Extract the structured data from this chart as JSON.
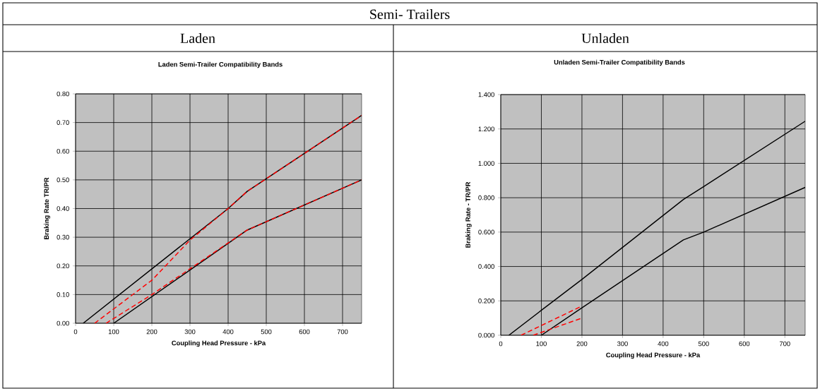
{
  "chart_data": [
    {
      "type": "line",
      "title": "Laden Semi-Trailer Compatibility Bands",
      "subtitle": "Laden",
      "annotations": [
        "Semi- Trailers"
      ],
      "xlabel": "Coupling Head Pressure - kPa",
      "ylabel": "Braking Rate TR/PR",
      "xlim": [
        0,
        750
      ],
      "xticks": [
        0,
        100,
        200,
        300,
        400,
        500,
        600,
        700
      ],
      "ylim": [
        0,
        0.8
      ],
      "yticks": [
        {
          "value": 0,
          "label": "0.00"
        },
        {
          "value": 0.1,
          "label": "0.10"
        },
        {
          "value": 0.2,
          "label": "0.20"
        },
        {
          "value": 0.3,
          "label": "0.30"
        },
        {
          "value": 0.4,
          "label": "0.40"
        },
        {
          "value": 0.5,
          "label": "0.50"
        },
        {
          "value": 0.6,
          "label": "0.60"
        },
        {
          "value": 0.7,
          "label": "0.70"
        },
        {
          "value": 0.8,
          "label": "0.80"
        }
      ],
      "grid": true,
      "series": [
        {
          "color": "#000000",
          "line_style": "solid",
          "x": [
            20,
            400,
            450,
            750
          ],
          "values": [
            0,
            0.4,
            0.46,
            0.725
          ]
        },
        {
          "color": "#000000",
          "line_style": "solid",
          "x": [
            100,
            450,
            750
          ],
          "values": [
            0,
            0.325,
            0.5
          ]
        },
        {
          "color": "#ff0000",
          "line_style": "dashed",
          "x": [
            50,
            200,
            300,
            400,
            450,
            750
          ],
          "values": [
            0,
            0.15,
            0.29,
            0.4,
            0.46,
            0.725
          ]
        },
        {
          "color": "#ff0000",
          "line_style": "dashed",
          "x": [
            80,
            200,
            300,
            450,
            750
          ],
          "values": [
            0,
            0.1,
            0.19,
            0.325,
            0.5
          ]
        }
      ]
    },
    {
      "type": "line",
      "title": "Unladen Semi-Trailer Compatibility Bands",
      "subtitle": "Unladen",
      "xlabel": "Coupling Head Pressure - kPa",
      "ylabel": "Braking Rate - TR/PR",
      "xlim": [
        0,
        750
      ],
      "xticks": [
        0,
        100,
        200,
        300,
        400,
        500,
        600,
        700
      ],
      "ylim": [
        0,
        1.4
      ],
      "yticks": [
        {
          "value": 0,
          "label": "0.000"
        },
        {
          "value": 0.2,
          "label": "0.200"
        },
        {
          "value": 0.4,
          "label": "0.400"
        },
        {
          "value": 0.6,
          "label": "0.600"
        },
        {
          "value": 0.8,
          "label": "0.800"
        },
        {
          "value": 1.0,
          "label": "1.000"
        },
        {
          "value": 1.2,
          "label": "1.200"
        },
        {
          "value": 1.4,
          "label": "1.400"
        }
      ],
      "grid": true,
      "series": [
        {
          "color": "#000000",
          "line_style": "solid",
          "x": [
            20,
            100,
            200,
            450,
            500,
            750
          ],
          "values": [
            0,
            0.145,
            0.325,
            0.79,
            0.865,
            1.245
          ]
        },
        {
          "color": "#000000",
          "line_style": "solid",
          "x": [
            100,
            200,
            450,
            500,
            750
          ],
          "values": [
            0,
            0.16,
            0.555,
            0.6,
            0.86
          ]
        },
        {
          "color": "#ff0000",
          "line_style": "dashed",
          "x": [
            50,
            200
          ],
          "values": [
            0,
            0.17
          ]
        },
        {
          "color": "#ff0000",
          "line_style": "dashed",
          "x": [
            80,
            200
          ],
          "values": [
            0,
            0.1
          ]
        }
      ]
    }
  ]
}
